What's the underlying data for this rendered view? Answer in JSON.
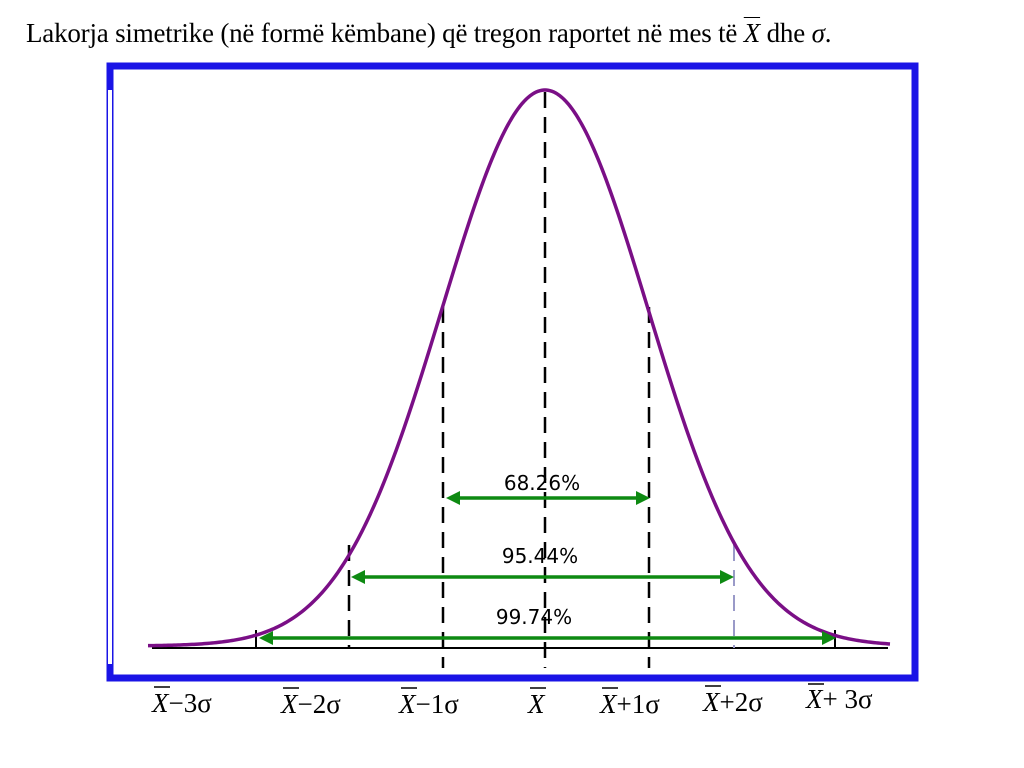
{
  "title": {
    "prefix": "Lakorja simetrike (në formë këmbane) që tregon raportet në mes të",
    "xbar_symbol": "X",
    "middle": "dhe",
    "sigma_symbol": "σ",
    "suffix": "."
  },
  "colors": {
    "frame": "#1a14e6",
    "curve": "#7a0f86",
    "arrows": "#0e8a12",
    "lines": "#000000",
    "light_line": "#9a9ac8"
  },
  "intervals": [
    {
      "label": "68.26%",
      "range_sigma": [
        -1,
        1
      ]
    },
    {
      "label": "95.44%",
      "range_sigma": [
        -2,
        2
      ]
    },
    {
      "label": "99.74%",
      "range_sigma": [
        -3,
        3
      ]
    }
  ],
  "axis_labels": [
    {
      "x": "X",
      "rest": "−3σ"
    },
    {
      "x": "X",
      "rest": "−2σ"
    },
    {
      "x": "X",
      "rest": "−1σ"
    },
    {
      "x": "X",
      "rest": ""
    },
    {
      "x": "X",
      "rest": "+1σ"
    },
    {
      "x": "X",
      "rest": "+2σ"
    },
    {
      "x": "X",
      "rest": "+ 3σ"
    }
  ]
}
